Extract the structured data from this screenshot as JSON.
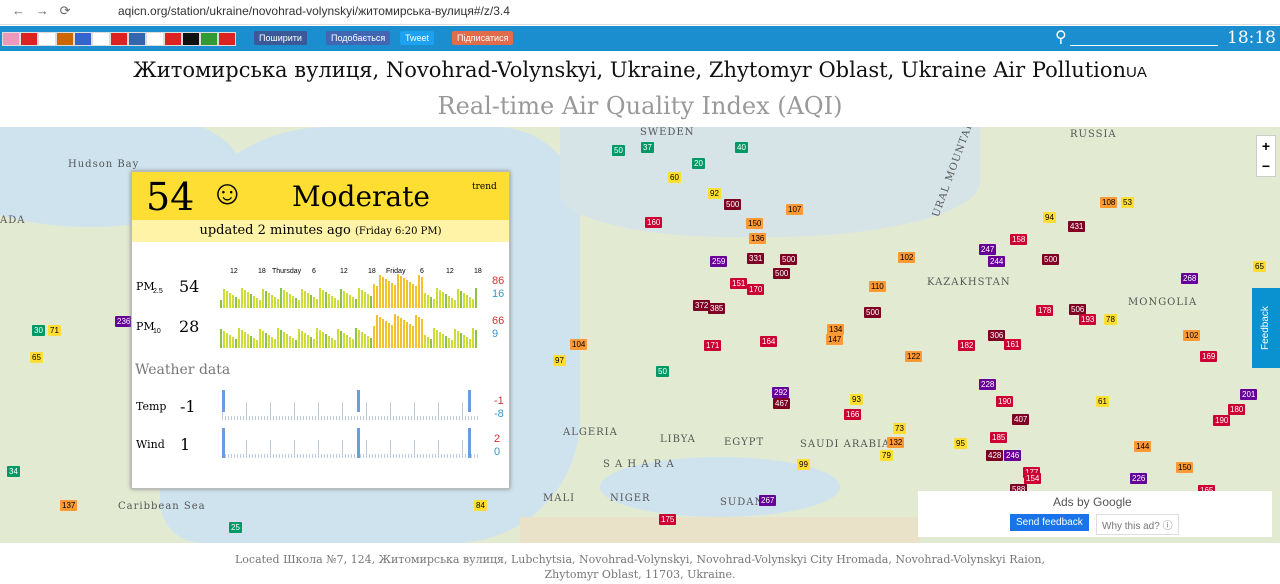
{
  "browser": {
    "url": "aqicn.org/station/ukraine/novohrad-volynskyi/житомирська-вулиця#/z/3.4"
  },
  "toolbar": {
    "share": "Поширити",
    "like": "Подобається",
    "tweet": "Tweet",
    "subscribe": "Підписатися",
    "time": "18:18"
  },
  "header": {
    "title": "Житомирська вулиця, Novohrad-Volynskyi, Ukraine, Zhytomyr Oblast, Ukraine Air Pollution",
    "country": "UA",
    "subtitle": "Real-time Air Quality Index (AQI)"
  },
  "panel": {
    "aqi": "54",
    "level": "Moderate",
    "trend": "trend",
    "updated": "updated 2 minutes ago",
    "updated_time": "(Friday 6:20 PM)",
    "time_labels": [
      "12",
      "18",
      "Thursday",
      "6",
      "12",
      "18",
      "Friday",
      "6",
      "12",
      "18"
    ],
    "rows": [
      {
        "label": "PM",
        "sub": "2.5",
        "value": "54",
        "max": "86",
        "min": "16"
      },
      {
        "label": "PM",
        "sub": "10",
        "value": "28",
        "max": "66",
        "min": "9"
      }
    ],
    "weather_title": "Weather data",
    "weather": [
      {
        "label": "Temp",
        "value": "-1",
        "max": "-1",
        "min": "-8"
      },
      {
        "label": "Wind",
        "value": "1",
        "max": "2",
        "min": "0"
      }
    ]
  },
  "map": {
    "labels": [
      "Hudson Bay",
      "RUSSIA",
      "KAZAKHSTAN",
      "MONGOLIA",
      "ALGERIA",
      "LIBYA",
      "EGYPT",
      "SAUDI ARABIA",
      "S A H A R A",
      "MALI",
      "NIGER",
      "SUDAN",
      "Caribbean Sea",
      "URAL MOUNTAINS",
      "SWEDEN",
      "ADA"
    ],
    "markers": [
      50,
      37,
      40,
      20,
      60,
      92,
      160,
      500,
      150,
      107,
      136,
      259,
      331,
      500,
      500,
      151,
      170,
      372,
      385,
      171,
      134,
      147,
      164,
      104,
      97,
      50,
      94,
      431,
      108,
      53,
      158,
      247,
      244,
      500,
      268,
      102,
      110,
      500,
      178,
      506,
      193,
      78,
      306,
      161,
      182,
      65,
      228,
      190,
      407,
      185,
      246,
      428,
      177,
      588,
      292,
      467,
      166,
      132,
      99,
      267,
      175,
      84,
      137,
      25,
      34,
      236,
      71,
      30,
      65,
      102,
      169,
      201,
      190,
      180,
      226,
      150,
      165,
      144,
      154,
      122,
      61,
      95,
      79,
      73,
      93
    ]
  },
  "ads": {
    "by": "Ads by Google",
    "send": "Send feedback",
    "why": "Why this ad? ⓘ",
    "feedback": "Feedback"
  },
  "footer": {
    "line1": "Located Школа №7, 124, Житомирська вулиця, Lubchytsia, Novohrad-Volynskyi, Novohrad-Volynskyi City Hromada, Novohrad-Volynskyi Raion,",
    "line2": "Zhytomyr Oblast, 11703, Ukraine."
  }
}
